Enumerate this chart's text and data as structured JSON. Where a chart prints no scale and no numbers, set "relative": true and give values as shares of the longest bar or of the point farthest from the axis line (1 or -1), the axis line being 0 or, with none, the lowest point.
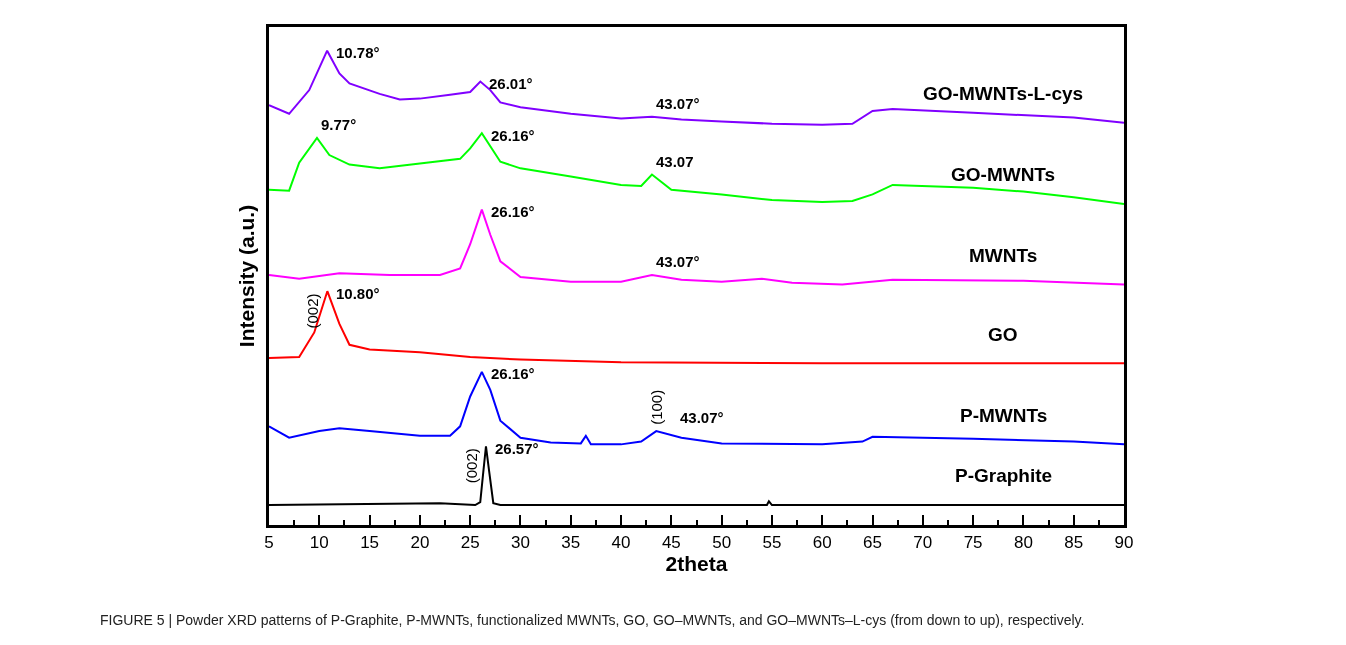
{
  "chart_data": {
    "type": "line",
    "relative": true,
    "xlabel": "2theta",
    "ylabel": "Intensity (a.u.)",
    "xlim": [
      5,
      90
    ],
    "xticks": [
      5,
      10,
      15,
      20,
      25,
      30,
      35,
      40,
      45,
      50,
      55,
      60,
      65,
      70,
      75,
      80,
      85,
      90
    ],
    "legend": false,
    "marker": "none",
    "line_style": "solid",
    "series": [
      {
        "name": "GO-MWNTs-L-cys",
        "color": "#8000ff",
        "x": [
          5,
          7,
          9,
          10.78,
          12,
          13,
          16,
          18,
          20,
          23,
          25,
          26.01,
          27,
          28,
          30,
          35,
          40,
          43.07,
          46,
          50,
          55,
          60,
          63,
          65,
          67,
          75,
          85,
          90
        ],
        "values": [
          0.885,
          0.867,
          0.917,
          1.0,
          0.952,
          0.931,
          0.909,
          0.897,
          0.899,
          0.907,
          0.913,
          0.935,
          0.917,
          0.891,
          0.881,
          0.867,
          0.857,
          0.861,
          0.855,
          0.851,
          0.846,
          0.844,
          0.846,
          0.873,
          0.877,
          0.869,
          0.859,
          0.848
        ]
      },
      {
        "name": "GO-MWNTs",
        "color": "#00ff00",
        "x": [
          5,
          7,
          8,
          9.77,
          11,
          13,
          16,
          20,
          24,
          25,
          26.16,
          28,
          30,
          35,
          40,
          42,
          43.07,
          45,
          50,
          55,
          60,
          63,
          65,
          67,
          75,
          80,
          85,
          90
        ],
        "values": [
          0.707,
          0.705,
          0.764,
          0.816,
          0.78,
          0.76,
          0.752,
          0.762,
          0.772,
          0.794,
          0.826,
          0.766,
          0.752,
          0.735,
          0.717,
          0.715,
          0.739,
          0.707,
          0.697,
          0.685,
          0.681,
          0.683,
          0.697,
          0.717,
          0.711,
          0.703,
          0.691,
          0.677
        ]
      },
      {
        "name": "MWNTs",
        "color": "#ff00ff",
        "x": [
          5,
          8,
          12,
          17,
          22,
          24,
          25,
          26.16,
          27,
          28,
          30,
          35,
          40,
          43.07,
          46,
          50,
          54,
          57,
          62,
          67,
          80,
          90
        ],
        "values": [
          0.527,
          0.519,
          0.531,
          0.527,
          0.527,
          0.541,
          0.592,
          0.665,
          0.612,
          0.556,
          0.523,
          0.513,
          0.513,
          0.527,
          0.517,
          0.513,
          0.519,
          0.511,
          0.507,
          0.517,
          0.515,
          0.507
        ]
      },
      {
        "name": "GO",
        "color": "#ff0000",
        "x": [
          5,
          8,
          9.5,
          10.8,
          12,
          13,
          15,
          20,
          25,
          30,
          40,
          60,
          90
        ],
        "values": [
          0.352,
          0.354,
          0.406,
          0.493,
          0.424,
          0.38,
          0.37,
          0.364,
          0.354,
          0.349,
          0.343,
          0.341,
          0.341
        ]
      },
      {
        "name": "P-MWNTs",
        "color": "#0000ff",
        "x": [
          5,
          7,
          10,
          12,
          15,
          20,
          23,
          24,
          25,
          26.16,
          27,
          28,
          30,
          33,
          36,
          36.5,
          37,
          40,
          42,
          43.5,
          46,
          50,
          60,
          64,
          65,
          75,
          85,
          90
        ],
        "values": [
          0.208,
          0.184,
          0.198,
          0.204,
          0.198,
          0.188,
          0.188,
          0.208,
          0.271,
          0.323,
          0.285,
          0.22,
          0.184,
          0.174,
          0.172,
          0.188,
          0.17,
          0.17,
          0.176,
          0.198,
          0.184,
          0.172,
          0.17,
          0.176,
          0.186,
          0.182,
          0.176,
          0.17
        ]
      },
      {
        "name": "P-Graphite",
        "color": "#000000",
        "x": [
          5,
          22,
          25.5,
          26.0,
          26.3,
          26.57,
          26.9,
          27.3,
          28,
          54.5,
          54.7,
          55,
          90
        ],
        "values": [
          0.042,
          0.046,
          0.042,
          0.048,
          0.111,
          0.166,
          0.111,
          0.046,
          0.042,
          0.042,
          0.05,
          0.042,
          0.042
        ]
      }
    ],
    "annotations": [
      {
        "text": "10.78°",
        "x": 10.78,
        "y": 1.0
      },
      {
        "text": "26.01°",
        "x": 26.01,
        "y": 0.935
      },
      {
        "text": "43.07°",
        "x": 43.07,
        "y": 0.861
      },
      {
        "text": "9.77°",
        "x": 9.77,
        "y": 0.816
      },
      {
        "text": "26.16°",
        "x": 26.16,
        "y": 0.826
      },
      {
        "text": "43.07",
        "x": 43.07,
        "y": 0.739
      },
      {
        "text": "26.16°",
        "x": 26.16,
        "y": 0.665
      },
      {
        "text": "43.07°",
        "x": 43.07,
        "y": 0.527
      },
      {
        "text": "(002)",
        "x": 10.8,
        "y": 0.493
      },
      {
        "text": "10.80°",
        "x": 10.8,
        "y": 0.493
      },
      {
        "text": "26.16°",
        "x": 26.16,
        "y": 0.323
      },
      {
        "text": "(100)",
        "x": 43.5,
        "y": 0.198
      },
      {
        "text": "43.07°",
        "x": 43.5,
        "y": 0.198
      },
      {
        "text": "(002)",
        "x": 26.57,
        "y": 0.166
      },
      {
        "text": "26.57°",
        "x": 26.57,
        "y": 0.166
      },
      "FIGURE 5 | Powder XRD patterns of P-Graphite, P-MWNTs, functionalized MWNTs, GO, GO–MWNTs, and GO–MWNTs–L-cys (from down to up), respectively."
    ]
  }
}
